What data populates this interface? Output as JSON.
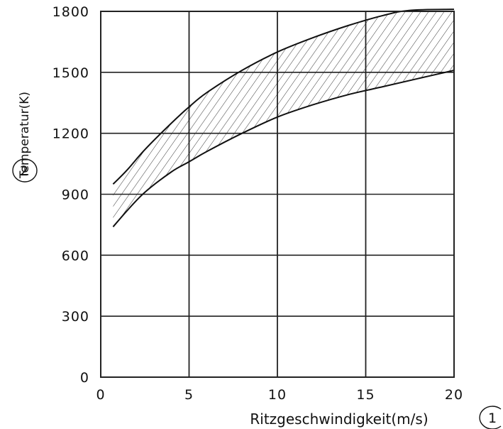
{
  "chart_data": {
    "type": "area",
    "xlabel": "Ritzgeschwindigkeit(m/s)",
    "ylabel": "Temperatur(K)",
    "xlabel_marker": "1",
    "ylabel_marker": "2",
    "xlim": [
      0,
      20
    ],
    "ylim": [
      0,
      1800
    ],
    "x_ticks": [
      0,
      5,
      10,
      15,
      20
    ],
    "y_ticks": [
      0,
      300,
      600,
      900,
      1200,
      1500,
      1800
    ],
    "x_tick_labels": [
      "0",
      "5",
      "10",
      "15",
      "20"
    ],
    "y_tick_labels": [
      "0",
      "300",
      "600",
      "900",
      "1200",
      "1500",
      "1800"
    ],
    "grid": true,
    "band_fill": "diagonal-hatch",
    "series": [
      {
        "x": [
          0.7,
          1.5,
          2.5,
          4,
          5,
          6,
          8,
          10,
          12,
          14,
          16,
          17.5,
          20
        ],
        "y": [
          950,
          1020,
          1120,
          1250,
          1330,
          1400,
          1510,
          1600,
          1670,
          1730,
          1780,
          1805,
          1810
        ]
      },
      {
        "x": [
          0.7,
          1.5,
          2.5,
          4,
          5,
          6,
          8,
          10,
          12,
          14,
          16,
          18,
          20
        ],
        "y": [
          740,
          820,
          910,
          1010,
          1060,
          1110,
          1200,
          1280,
          1340,
          1390,
          1430,
          1470,
          1510
        ]
      }
    ],
    "colors": {
      "line": "#111111",
      "grid": "#222222",
      "background": "#ffffff"
    }
  }
}
